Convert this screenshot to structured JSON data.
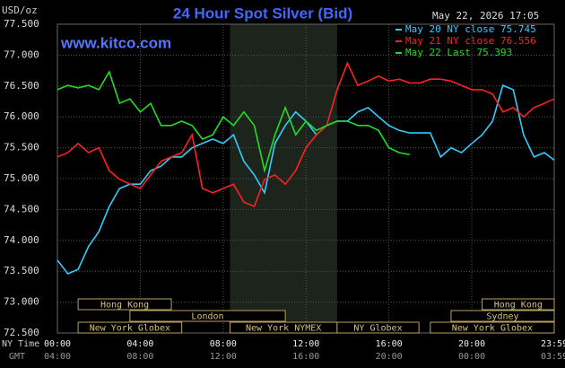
{
  "chart_data": {
    "type": "line",
    "title": "24 Hour Spot Silver (Bid)",
    "timestamp": "May 22, 2026 17:05",
    "source": "www.kitco.com",
    "ylabel": "USD/oz",
    "xlabel": "NY Time",
    "x2label": "GMT",
    "x": [
      0,
      0.5,
      1,
      1.5,
      2,
      2.5,
      3,
      3.5,
      4,
      4.5,
      5,
      5.5,
      6,
      6.5,
      7,
      7.5,
      8,
      8.5,
      9,
      9.5,
      10,
      10.5,
      11,
      11.5,
      12,
      12.5,
      13,
      13.5,
      14,
      14.5,
      15,
      15.5,
      16,
      16.5,
      17,
      17.5,
      18,
      18.5,
      19,
      19.5,
      20,
      20.5,
      21,
      21.5,
      22,
      22.5,
      23,
      23.5,
      23.98
    ],
    "series": [
      {
        "name": "May 20 NY close 75.745",
        "color": "#33ccff",
        "values": [
          73.68,
          73.46,
          73.53,
          73.9,
          74.14,
          74.55,
          74.84,
          74.91,
          74.91,
          75.13,
          75.2,
          75.35,
          75.35,
          75.5,
          75.57,
          75.64,
          75.57,
          75.71,
          75.28,
          75.06,
          74.77,
          75.57,
          75.86,
          76.08,
          75.93,
          75.71,
          75.86,
          75.93,
          75.93,
          76.08,
          76.15,
          76.0,
          75.86,
          75.78,
          75.74,
          75.74,
          75.74,
          75.35,
          75.5,
          75.42,
          75.57,
          75.71,
          75.93,
          76.51,
          76.44,
          75.71,
          75.35,
          75.42,
          75.3
        ]
      },
      {
        "name": "May 21 NY close 76.556",
        "color": "#ff2020",
        "values": [
          75.35,
          75.42,
          75.57,
          75.42,
          75.5,
          75.13,
          74.99,
          74.91,
          74.84,
          75.06,
          75.28,
          75.35,
          75.42,
          75.71,
          74.84,
          74.77,
          74.84,
          74.91,
          74.62,
          74.55,
          74.99,
          75.06,
          74.91,
          75.13,
          75.5,
          75.71,
          75.86,
          76.44,
          76.87,
          76.51,
          76.58,
          76.66,
          76.58,
          76.61,
          76.55,
          76.55,
          76.61,
          76.61,
          76.58,
          76.51,
          76.44,
          76.44,
          76.37,
          76.08,
          76.15,
          76.0,
          76.15,
          76.22,
          76.29
        ]
      },
      {
        "name": "May 22 Last 75.393",
        "color": "#22dd22",
        "values": [
          76.44,
          76.51,
          76.47,
          76.51,
          76.44,
          76.73,
          76.22,
          76.29,
          76.08,
          76.22,
          75.86,
          75.86,
          75.93,
          75.86,
          75.64,
          75.71,
          76.0,
          75.86,
          76.08,
          75.86,
          75.13,
          75.71,
          76.15,
          75.71,
          75.93,
          75.78,
          75.86,
          75.93,
          75.93,
          75.86,
          75.86,
          75.78,
          75.5,
          75.42,
          75.39,
          null,
          null,
          null,
          null,
          null,
          null,
          null,
          null,
          null,
          null,
          null,
          null,
          null,
          null
        ]
      }
    ],
    "xlim": [
      0,
      23.98
    ],
    "ylim": [
      72.5,
      77.5
    ],
    "yticks": [
      {
        "value": 72.5,
        "label": "72.500"
      },
      {
        "value": 73,
        "label": "73.000"
      },
      {
        "value": 73.5,
        "label": "73.500"
      },
      {
        "value": 74,
        "label": "74.000"
      },
      {
        "value": 74.5,
        "label": "74.500"
      },
      {
        "value": 75,
        "label": "75.000"
      },
      {
        "value": 75.5,
        "label": "75.500"
      },
      {
        "value": 76,
        "label": "76.000"
      },
      {
        "value": 76.5,
        "label": "76.500"
      },
      {
        "value": 77,
        "label": "77.000"
      },
      {
        "value": 77.5,
        "label": "77.500"
      }
    ],
    "xticks": [
      {
        "value": 0,
        "label": "00:00"
      },
      {
        "value": 4,
        "label": "04:00"
      },
      {
        "value": 8,
        "label": "08:00"
      },
      {
        "value": 12,
        "label": "12:00"
      },
      {
        "value": 16,
        "label": "16:00"
      },
      {
        "value": 20,
        "label": "20:00"
      },
      {
        "value": 23.98,
        "label": "23:59"
      }
    ],
    "gmt_ticks": [
      "04:00",
      "08:00",
      "12:00",
      "16:00",
      "20:00",
      "00:00",
      "03:59"
    ],
    "grid": true,
    "sessions": [
      {
        "label": "Hong Kong",
        "start": 1,
        "end": 5.5
      },
      {
        "label": "London",
        "start": 3.5,
        "end": 11
      },
      {
        "label": "New York Globex",
        "start": 1,
        "end": 6
      },
      {
        "label": "New York NYMEX",
        "start": 8.33,
        "end": 13.5
      },
      {
        "label": "NY Globex",
        "start": 13.5,
        "end": 17.45
      },
      {
        "label": "Sydney",
        "start": 19,
        "end": 23.98
      },
      {
        "label": "Hong Kong",
        "start": 20.5,
        "end": 23.98
      },
      {
        "label": "New York Globex",
        "start": 18,
        "end": 23.98
      }
    ]
  }
}
